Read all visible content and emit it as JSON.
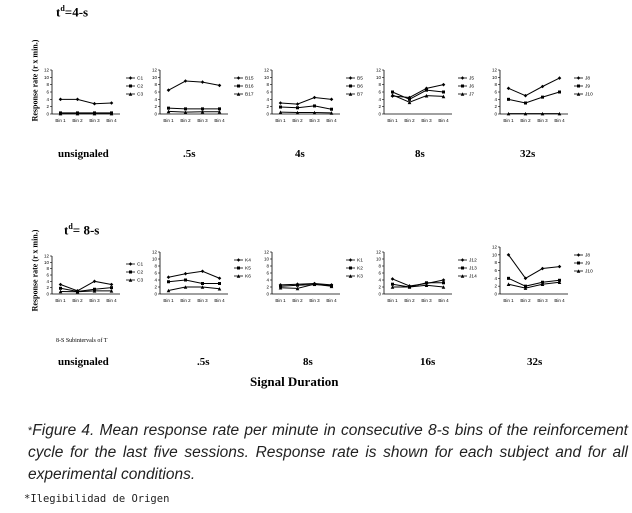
{
  "header_top": {
    "td_sup": "d",
    "td_rest": "=4-s"
  },
  "header_bottom": {
    "td_sup": "d",
    "td_rest": "= 8-s"
  },
  "ylabel": "Response rate (r x min.)",
  "subintervals_label": "8-S Subintervals of T",
  "xlabel": "Signal Duration",
  "row1_labels": [
    "unsignaled",
    ".5s",
    "4s",
    "8s",
    "32s"
  ],
  "row2_labels": [
    "unsignaled",
    ".5s",
    "8s",
    "16s",
    "32s"
  ],
  "caption": "Figure 4. Mean response rate per minute in consecutive 8-s bins of the reinforcement cycle for the last five sessions. Response rate is shown for each subject and for all experimental conditions.",
  "caption_star": "*",
  "footnote": "*Ilegibilidad de Origen",
  "colors": {
    "line": "#000000"
  },
  "chart_data": [
    {
      "type": "line",
      "categories": [
        "Bin 1",
        "Bin 2",
        "Bin 3",
        "Bin 4"
      ],
      "ylim": [
        0,
        12
      ],
      "ticks": [
        0,
        2,
        4,
        6,
        8,
        10,
        12
      ],
      "series": [
        {
          "name": "C1",
          "values": [
            4,
            4,
            2.8,
            3
          ]
        },
        {
          "name": "C2",
          "values": [
            0.3,
            0.3,
            0.3,
            0.3
          ]
        },
        {
          "name": "C3",
          "values": [
            0.1,
            0.1,
            0.1,
            0.1
          ]
        }
      ]
    },
    {
      "type": "line",
      "categories": [
        "Bin 1",
        "Bin 2",
        "Bin 3",
        "Bin 4"
      ],
      "ylim": [
        0,
        12
      ],
      "ticks": [
        0,
        2,
        4,
        6,
        8,
        10,
        12
      ],
      "series": [
        {
          "name": "B15",
          "values": [
            6.5,
            9,
            8.7,
            7.8
          ]
        },
        {
          "name": "B16",
          "values": [
            1.6,
            1.4,
            1.4,
            1.4
          ]
        },
        {
          "name": "B17",
          "values": [
            0.7,
            0.5,
            0.6,
            0.6
          ]
        }
      ]
    },
    {
      "type": "line",
      "categories": [
        "Bin 1",
        "Bin 2",
        "Bin 3",
        "Bin 4"
      ],
      "ylim": [
        0,
        12
      ],
      "ticks": [
        0,
        2,
        4,
        6,
        8,
        10,
        12
      ],
      "series": [
        {
          "name": "B5",
          "values": [
            3,
            2.7,
            4.5,
            4
          ]
        },
        {
          "name": "B6",
          "values": [
            1.9,
            1.7,
            2.2,
            1.3
          ]
        },
        {
          "name": "B7",
          "values": [
            0.5,
            0.4,
            0.4,
            0.3
          ]
        }
      ]
    },
    {
      "type": "line",
      "categories": [
        "Bin 1",
        "Bin 2",
        "Bin 3",
        "Bin 4"
      ],
      "ylim": [
        0,
        12
      ],
      "ticks": [
        0,
        2,
        4,
        6,
        8,
        10,
        12
      ],
      "series": [
        {
          "name": "J5",
          "values": [
            4.9,
            4.5,
            7,
            8
          ]
        },
        {
          "name": "J6",
          "values": [
            6,
            4,
            6.5,
            6
          ]
        },
        {
          "name": "J7",
          "values": [
            5.2,
            3.2,
            5,
            4.8
          ]
        }
      ]
    },
    {
      "type": "line",
      "categories": [
        "Bin 1",
        "Bin 2",
        "Bin 3",
        "Bin 4"
      ],
      "ylim": [
        0,
        12
      ],
      "ticks": [
        0,
        2,
        4,
        6,
        8,
        10,
        12
      ],
      "series": [
        {
          "name": "J8",
          "values": [
            7,
            5,
            7.5,
            9.8
          ]
        },
        {
          "name": "J9",
          "values": [
            4,
            3,
            4.6,
            6
          ]
        },
        {
          "name": "J10",
          "values": [
            0.1,
            0.1,
            0.1,
            0.1
          ]
        }
      ]
    },
    {
      "type": "line",
      "categories": [
        "Bin 1",
        "Bin 2",
        "Bin 3",
        "Bin 4"
      ],
      "ylim": [
        0,
        12
      ],
      "ticks": [
        0,
        2,
        4,
        6,
        8,
        10,
        12
      ],
      "series": [
        {
          "name": "C1",
          "values": [
            3,
            1,
            4,
            3
          ]
        },
        {
          "name": "C2",
          "values": [
            1.8,
            0.8,
            1.5,
            2
          ]
        },
        {
          "name": "C3",
          "values": [
            0.8,
            0.7,
            1,
            1
          ]
        }
      ]
    },
    {
      "type": "line",
      "categories": [
        "Bin 1",
        "Bin 2",
        "Bin 3",
        "Bin 4"
      ],
      "ylim": [
        0,
        12
      ],
      "ticks": [
        0,
        2,
        4,
        6,
        8,
        10,
        12
      ],
      "series": [
        {
          "name": "K4",
          "values": [
            4.8,
            5.8,
            6.5,
            4.5
          ]
        },
        {
          "name": "K5",
          "values": [
            3.5,
            4,
            3,
            3
          ]
        },
        {
          "name": "K6",
          "values": [
            1,
            2,
            2,
            1.5
          ]
        }
      ]
    },
    {
      "type": "line",
      "categories": [
        "Bin 1",
        "Bin 2",
        "Bin 3",
        "Bin 4"
      ],
      "ylim": [
        0,
        12
      ],
      "ticks": [
        0,
        2,
        4,
        6,
        8,
        10,
        12
      ],
      "series": [
        {
          "name": "K1",
          "values": [
            2.6,
            2.8,
            3,
            2.6
          ]
        },
        {
          "name": "K2",
          "values": [
            2.2,
            2.5,
            2.7,
            2.4
          ]
        },
        {
          "name": "K3",
          "values": [
            1.8,
            1.6,
            2.8,
            2.2
          ]
        }
      ]
    },
    {
      "type": "line",
      "categories": [
        "Bin 1",
        "Bin 2",
        "Bin 3",
        "Bin 4"
      ],
      "ylim": [
        0,
        12
      ],
      "ticks": [
        0,
        2,
        4,
        6,
        8,
        10,
        12
      ],
      "series": [
        {
          "name": "J12",
          "values": [
            4.3,
            2.3,
            3,
            4
          ]
        },
        {
          "name": "J13",
          "values": [
            2.8,
            2,
            3.2,
            3.2
          ]
        },
        {
          "name": "J14",
          "values": [
            2,
            2,
            2.5,
            2
          ]
        }
      ]
    },
    {
      "type": "line",
      "categories": [
        "Bin 1",
        "Bin 2",
        "Bin 3",
        "Bin 4"
      ],
      "ylim": [
        0,
        12
      ],
      "ticks": [
        0,
        2,
        4,
        6,
        8,
        10,
        12
      ],
      "series": [
        {
          "name": "J8",
          "values": [
            10,
            4,
            6.5,
            7
          ]
        },
        {
          "name": "J9",
          "values": [
            4,
            2,
            3,
            3.5
          ]
        },
        {
          "name": "J10",
          "values": [
            2.5,
            1.5,
            2.5,
            3
          ]
        }
      ]
    }
  ]
}
